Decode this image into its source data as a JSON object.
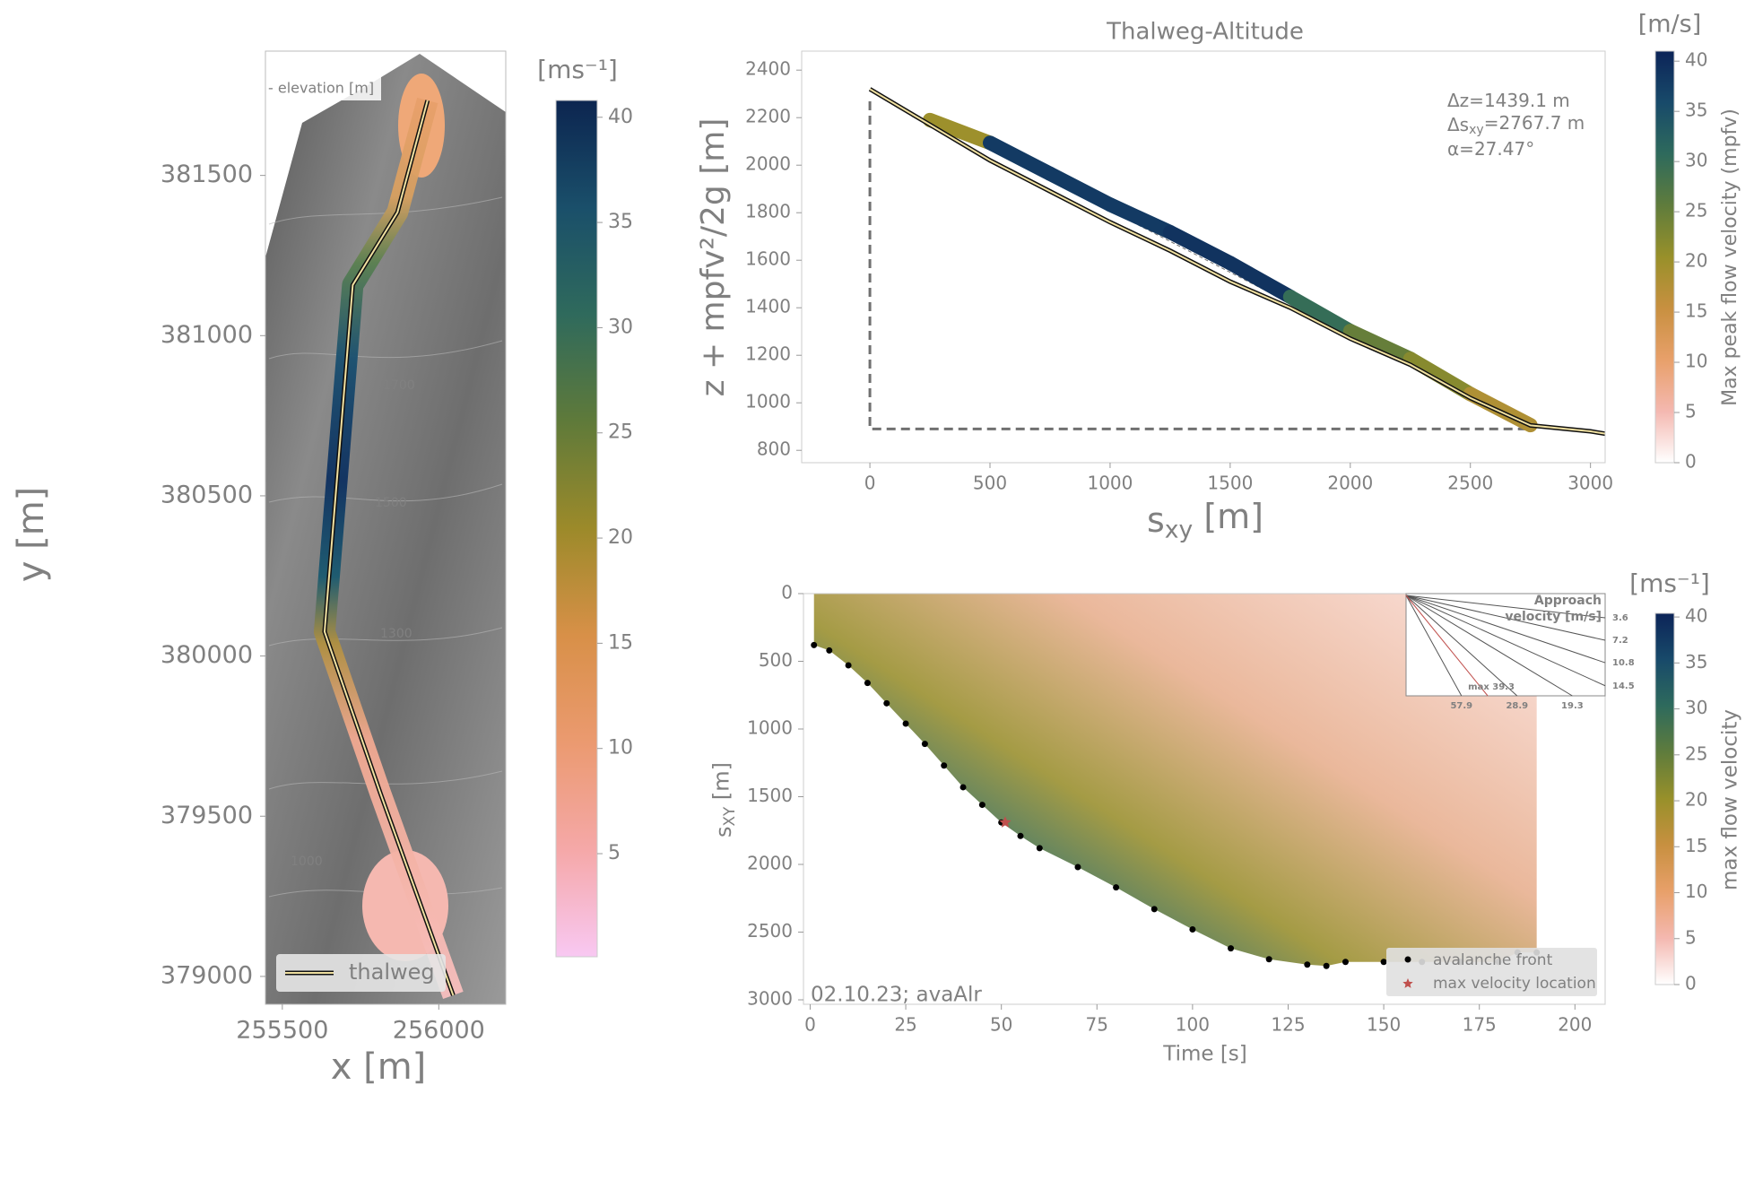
{
  "chart_data": [
    {
      "type": "map",
      "xlabel": "x [m]",
      "ylabel": "y [m]",
      "xlim": [
        255446,
        256214
      ],
      "ylim": [
        378913,
        381888
      ],
      "xticks": [
        255500,
        256000
      ],
      "yticks": [
        379000,
        379500,
        380000,
        380500,
        381000,
        381500
      ],
      "series": [
        {
          "name": "thalweg",
          "color": "#f0e0a0",
          "x": [
            255964,
            255868,
            255725,
            255635,
            255814,
            256046
          ],
          "values": [
            381734,
            381385,
            381158,
            380076,
            379570,
            378941
          ]
        }
      ],
      "legend": "lower left",
      "basemap_label": "- elevation [m]",
      "contour_labels": [
        "1700",
        "1500",
        "1300",
        "1000"
      ],
      "colorbar": {
        "label": "[ms⁻¹]",
        "lim": [
          0.1,
          40.8
        ],
        "ticks": [
          5,
          10,
          15,
          20,
          25,
          30,
          35,
          40
        ],
        "colormap": [
          "#f8c8f2",
          "#f5a8a8",
          "#eb9a70",
          "#d89048",
          "#9c8a2a",
          "#5f7a3a",
          "#2f6a5c",
          "#1a4f6a",
          "#0c2550"
        ]
      }
    },
    {
      "type": "line",
      "title": "Thalweg-Altitude",
      "xlabel": [
        "s",
        "xy",
        " [m]"
      ],
      "ylabel": "z + mpfv²/2g [m]",
      "xlim": [
        -284,
        3061
      ],
      "ylim": [
        748,
        2480
      ],
      "xticks": [
        0,
        500,
        1000,
        1500,
        2000,
        2500,
        3000
      ],
      "yticks": [
        800,
        1000,
        1200,
        1400,
        1600,
        1800,
        2000,
        2200,
        2400
      ],
      "series": [
        {
          "color": "#f0e0a0",
          "x": [
            0,
            250,
            500,
            750,
            1000,
            1250,
            1500,
            1750,
            2000,
            2250,
            2500,
            2750,
            3000,
            3061
          ],
          "values": [
            2320,
            2170,
            2020,
            1890,
            1760,
            1640,
            1510,
            1400,
            1270,
            1160,
            1020,
            905,
            880,
            870
          ]
        },
        {
          "x": [
            0,
            250,
            500,
            750,
            1000,
            1250,
            1500,
            1750,
            2000,
            2250,
            2500,
            2750
          ],
          "values": [
            2320,
            2190,
            2094,
            1964,
            1834,
            1718,
            1588,
            1446,
            1302,
            1185,
            1037,
            906
          ],
          "velocity": [
            0,
            20,
            38,
            38,
            38,
            39,
            39,
            30,
            25,
            22,
            18,
            5
          ]
        }
      ],
      "lines": [
        {
          "x": [
            0,
            0,
            2767.7
          ],
          "values": [
            2329,
            890,
            890
          ],
          "dash": "long"
        },
        {
          "x": [
            0,
            2767.7
          ],
          "values": [
            2329,
            890
          ],
          "dash": "short"
        }
      ],
      "annotations": [
        [
          "Δz=1439.1 m"
        ],
        [
          "Δs",
          "xy",
          "=2767.7 m"
        ],
        [
          "α=27.47°"
        ]
      ],
      "colorbar": {
        "title": "[m/s]",
        "label": "Max peak flow velocity (mpfv)",
        "lim": [
          0,
          41
        ],
        "ticks": [
          0,
          5,
          10,
          15,
          20,
          25,
          30,
          35,
          40
        ],
        "colormap": [
          "#ffffff",
          "#f4b8b0",
          "#e8a06a",
          "#c89040",
          "#98902a",
          "#5f7c3c",
          "#2e6a5c",
          "#184a6a",
          "#0c2458"
        ]
      }
    },
    {
      "type": "scatter",
      "xlabel": "Time [s]",
      "ylabel": [
        "s",
        "XY",
        " [m]"
      ],
      "xlim": [
        -1.75,
        207.9
      ],
      "ylim": [
        0,
        3033
      ],
      "y_inverted": true,
      "xticks": [
        0,
        25,
        50,
        75,
        100,
        125,
        150,
        175,
        200
      ],
      "yticks": [
        0,
        500,
        1000,
        1500,
        2000,
        2500,
        3000
      ],
      "series": [
        {
          "name": "avalanche front",
          "color": "#000000",
          "marker": "o",
          "x": [
            1,
            5,
            10,
            15,
            20,
            25,
            30,
            35,
            40,
            45,
            50,
            55,
            60,
            70,
            80,
            90,
            100,
            110,
            120,
            130,
            135,
            140,
            150,
            160,
            170,
            180,
            185,
            190
          ],
          "values": [
            380,
            420,
            530,
            660,
            810,
            960,
            1110,
            1270,
            1430,
            1560,
            1690,
            1790,
            1880,
            2020,
            2170,
            2330,
            2480,
            2620,
            2700,
            2740,
            2750,
            2720,
            2720,
            2720,
            2720,
            2720,
            2650,
            2650
          ]
        },
        {
          "name": "max velocity location",
          "color": "#c0504d",
          "marker": "*",
          "x": [
            51
          ],
          "values": [
            1690
          ]
        }
      ],
      "legend": "lower right",
      "annotation": "02.10.23; avaAlr",
      "inset": {
        "title": [
          "Approach",
          "velocity [m/s]"
        ],
        "rays": [
          3.6,
          7.2,
          10.8,
          14.5,
          19.3,
          28.9,
          57.9
        ],
        "max": {
          "value": 39.3,
          "label": "max 39.3"
        },
        "max_color": "#c0504d"
      },
      "colorbar": {
        "title": "[ms⁻¹]",
        "label": "max flow velocity",
        "lim": [
          0,
          40.4
        ],
        "ticks": [
          0,
          5,
          10,
          15,
          20,
          25,
          30,
          35,
          40
        ],
        "colormap": [
          "#ffffff",
          "#f4b8b0",
          "#e8a06a",
          "#c89040",
          "#98902a",
          "#5f7c3c",
          "#2e6a5c",
          "#184a6a",
          "#0c2458"
        ]
      }
    }
  ]
}
